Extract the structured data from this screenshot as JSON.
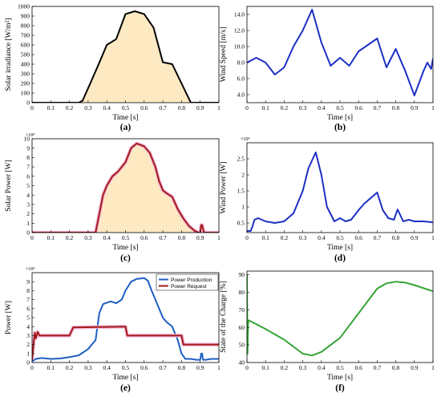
{
  "chart_data": [
    {
      "id": "a",
      "type": "area",
      "caption": "(a)",
      "xlabel": "Time [s]",
      "ylabel": "Solar irradiance [W/m²]",
      "xlim": [
        0,
        1
      ],
      "ylim": [
        0,
        1000
      ],
      "xticks": [
        "0",
        "0.1",
        "0.2",
        "0.3",
        "0.4",
        "0.5",
        "0.6",
        "0.7",
        "0.8",
        "0.9",
        "1"
      ],
      "yticks": [
        "0",
        "100",
        "200",
        "300",
        "400",
        "500",
        "600",
        "700",
        "800",
        "900",
        "1000"
      ],
      "grid": false,
      "fill": "#fde9c2",
      "series": [
        {
          "color": "#000000",
          "fill": true,
          "x": [
            0,
            0.25,
            0.27,
            0.3,
            0.35,
            0.4,
            0.45,
            0.5,
            0.55,
            0.6,
            0.65,
            0.7,
            0.75,
            0.8,
            0.85,
            1
          ],
          "y": [
            0,
            0,
            20,
            150,
            370,
            600,
            660,
            920,
            950,
            920,
            780,
            420,
            400,
            200,
            0,
            0
          ]
        }
      ]
    },
    {
      "id": "b",
      "type": "line",
      "caption": "(b)",
      "xlabel": "Time [s]",
      "ylabel": "Wind Speed [m/s]",
      "xlim": [
        0,
        1
      ],
      "ylim": [
        3,
        15
      ],
      "xticks": [
        "0",
        "0.1",
        "0.2",
        "0.3",
        "0.4",
        "0.5",
        "0.6",
        "0.7",
        "0.8",
        "0.9",
        "1"
      ],
      "yticks": [
        "4.0",
        "6.0",
        "8.0",
        "10.0",
        "12.0",
        "14.0"
      ],
      "ytick_values": [
        4,
        6,
        8,
        10,
        12,
        14
      ],
      "grid": false,
      "series": [
        {
          "color": "#1c2fc4",
          "fill": false,
          "x": [
            0,
            0.05,
            0.1,
            0.15,
            0.2,
            0.25,
            0.3,
            0.35,
            0.4,
            0.45,
            0.5,
            0.55,
            0.6,
            0.65,
            0.7,
            0.75,
            0.8,
            0.85,
            0.9,
            0.95,
            0.97,
            0.99,
            1
          ],
          "y": [
            8,
            8.6,
            8,
            6.5,
            7.4,
            10,
            12,
            14.6,
            10.5,
            7.6,
            8.6,
            7.6,
            9.4,
            10.2,
            11,
            7.4,
            9.7,
            7,
            3.9,
            7,
            8,
            7.2,
            8.5
          ]
        }
      ]
    },
    {
      "id": "c",
      "type": "area",
      "caption": "(c)",
      "xlabel": "Time [s]",
      "ylabel": "Solar Power [W]",
      "scale_label": "×10⁴",
      "xlim": [
        0,
        1
      ],
      "ylim": [
        0,
        10
      ],
      "xticks": [
        "0",
        "0.1",
        "0.2",
        "0.3",
        "0.4",
        "0.5",
        "0.6",
        "0.7",
        "0.8",
        "0.9",
        "1"
      ],
      "xticks_red": [
        "0.1",
        "0.2",
        "0.3"
      ],
      "yticks": [
        "0",
        "1",
        "2",
        "3",
        "4",
        "5",
        "6",
        "7",
        "8",
        "9",
        "10"
      ],
      "grid": false,
      "series": [
        {
          "color": "#a31a1a",
          "fill": true,
          "fill_color": "#fde9c2",
          "x": [
            0,
            0.34,
            0.36,
            0.38,
            0.4,
            0.43,
            0.46,
            0.5,
            0.53,
            0.56,
            0.6,
            0.63,
            0.66,
            0.68,
            0.7,
            0.72,
            0.75,
            0.78,
            0.81,
            0.84,
            0.87,
            0.89,
            0.9,
            0.905,
            0.91,
            0.92,
            0.925,
            1
          ],
          "y": [
            0,
            0,
            2,
            4,
            5,
            6,
            6.5,
            7.5,
            9,
            9.5,
            9.2,
            8.5,
            7,
            5.5,
            4.5,
            4.2,
            3.8,
            2.5,
            1.5,
            0.7,
            0.2,
            0,
            0,
            0.8,
            0.8,
            0,
            0,
            0
          ]
        }
      ]
    },
    {
      "id": "d",
      "type": "line",
      "caption": "(d)",
      "xlabel": "Time [s]",
      "ylabel": "Wind Power [W]",
      "scale_label": "×10⁴",
      "xlim": [
        0,
        1
      ],
      "ylim": [
        0.2,
        3
      ],
      "xticks": [
        "0",
        "0.1",
        "0.2",
        "0.3",
        "0.4",
        "0.5",
        "0.6",
        "0.7",
        "0.8",
        "0.9",
        "1"
      ],
      "yticks": [
        "0.5",
        "1",
        "1.5",
        "2",
        "2.5"
      ],
      "ytick_values": [
        0.5,
        1,
        1.5,
        2,
        2.5
      ],
      "grid": false,
      "series": [
        {
          "color": "#1c2fc4",
          "fill": false,
          "x": [
            0,
            0.02,
            0.03,
            0.04,
            0.06,
            0.1,
            0.15,
            0.2,
            0.25,
            0.3,
            0.33,
            0.37,
            0.4,
            0.43,
            0.47,
            0.5,
            0.53,
            0.56,
            0.6,
            0.63,
            0.66,
            0.7,
            0.73,
            0.76,
            0.79,
            0.81,
            0.84,
            0.87,
            0.9,
            0.95,
            1
          ],
          "y": [
            0.25,
            0.25,
            0.4,
            0.6,
            0.65,
            0.55,
            0.5,
            0.55,
            0.8,
            1.5,
            2.2,
            2.7,
            2,
            1,
            0.55,
            0.65,
            0.55,
            0.6,
            0.9,
            1.1,
            1.25,
            1.45,
            0.9,
            0.65,
            0.6,
            0.92,
            0.55,
            0.6,
            0.55,
            0.55,
            0.52
          ]
        }
      ]
    },
    {
      "id": "e",
      "type": "line",
      "caption": "(e)",
      "xlabel": "Time [s]",
      "ylabel": "Power [W]",
      "scale_label": "×10⁴",
      "xlim": [
        0,
        1
      ],
      "ylim": [
        0,
        10
      ],
      "xticks": [
        "0",
        "0.1",
        "0.2",
        "0.3",
        "0.4",
        "0.5",
        "0.6",
        "0.7",
        "0.8",
        "0.9",
        "1"
      ],
      "yticks": [
        "0",
        "1",
        "2",
        "3",
        "4",
        "5",
        "6",
        "7",
        "8",
        "9"
      ],
      "ytick_values": [
        0,
        1,
        2,
        3,
        4,
        5,
        6,
        7,
        8,
        9
      ],
      "grid": false,
      "legend": "top-right",
      "series": [
        {
          "name": "Power Production",
          "color": "#1f5ec4",
          "fill": false,
          "x": [
            0,
            0.005,
            0.02,
            0.05,
            0.1,
            0.15,
            0.2,
            0.25,
            0.3,
            0.34,
            0.36,
            0.38,
            0.42,
            0.45,
            0.48,
            0.5,
            0.53,
            0.56,
            0.6,
            0.62,
            0.64,
            0.66,
            0.68,
            0.7,
            0.72,
            0.75,
            0.78,
            0.8,
            0.82,
            0.85,
            0.88,
            0.9,
            0.905,
            0.91,
            0.915,
            0.93,
            0.96,
            1
          ],
          "y": [
            0.5,
            0.2,
            0.4,
            0.5,
            0.4,
            0.45,
            0.6,
            0.8,
            1.5,
            2.5,
            5.5,
            6.5,
            6.8,
            6.6,
            7,
            8,
            9,
            9.3,
            9.4,
            9.1,
            8,
            7,
            6,
            5,
            4.5,
            4,
            2.5,
            1,
            0.4,
            0.4,
            0.3,
            0.3,
            1,
            1,
            0.3,
            0.3,
            0.4,
            0.4
          ]
        },
        {
          "name": "Power Request",
          "color": "#a31a1a",
          "fill": false,
          "x": [
            0,
            0.01,
            0.015,
            0.02,
            0.03,
            0.04,
            0.2,
            0.22,
            0.5,
            0.51,
            0.8,
            0.81,
            1
          ],
          "y": [
            0.3,
            2.5,
            3.3,
            2.7,
            3.4,
            3,
            3,
            3.9,
            4,
            3,
            3,
            2,
            2
          ]
        }
      ]
    },
    {
      "id": "f",
      "type": "line",
      "caption": "(f)",
      "xlabel": "Time [s]",
      "ylabel": "State of the Charge [%]",
      "xlim": [
        0,
        1
      ],
      "ylim": [
        40,
        92
      ],
      "xticks": [
        "0",
        "0.1",
        "0.2",
        "0.3",
        "0.4",
        "0.5",
        "0.6",
        "0.7",
        "0.8",
        "0.9",
        "1"
      ],
      "yticks": [
        "40",
        "50",
        "60",
        "70",
        "80",
        "90"
      ],
      "ytick_values": [
        40,
        50,
        60,
        70,
        80,
        90
      ],
      "grid": false,
      "series": [
        {
          "color": "#35a336",
          "fill": false,
          "x": [
            0,
            0.003,
            0.006,
            0.01,
            0.1,
            0.2,
            0.3,
            0.35,
            0.4,
            0.5,
            0.6,
            0.7,
            0.75,
            0.8,
            0.85,
            0.9,
            1
          ],
          "y": [
            90,
            45,
            62,
            64,
            59,
            53,
            45,
            44,
            46,
            54,
            68,
            82,
            85,
            86,
            85.5,
            84,
            80.5
          ]
        }
      ]
    }
  ]
}
